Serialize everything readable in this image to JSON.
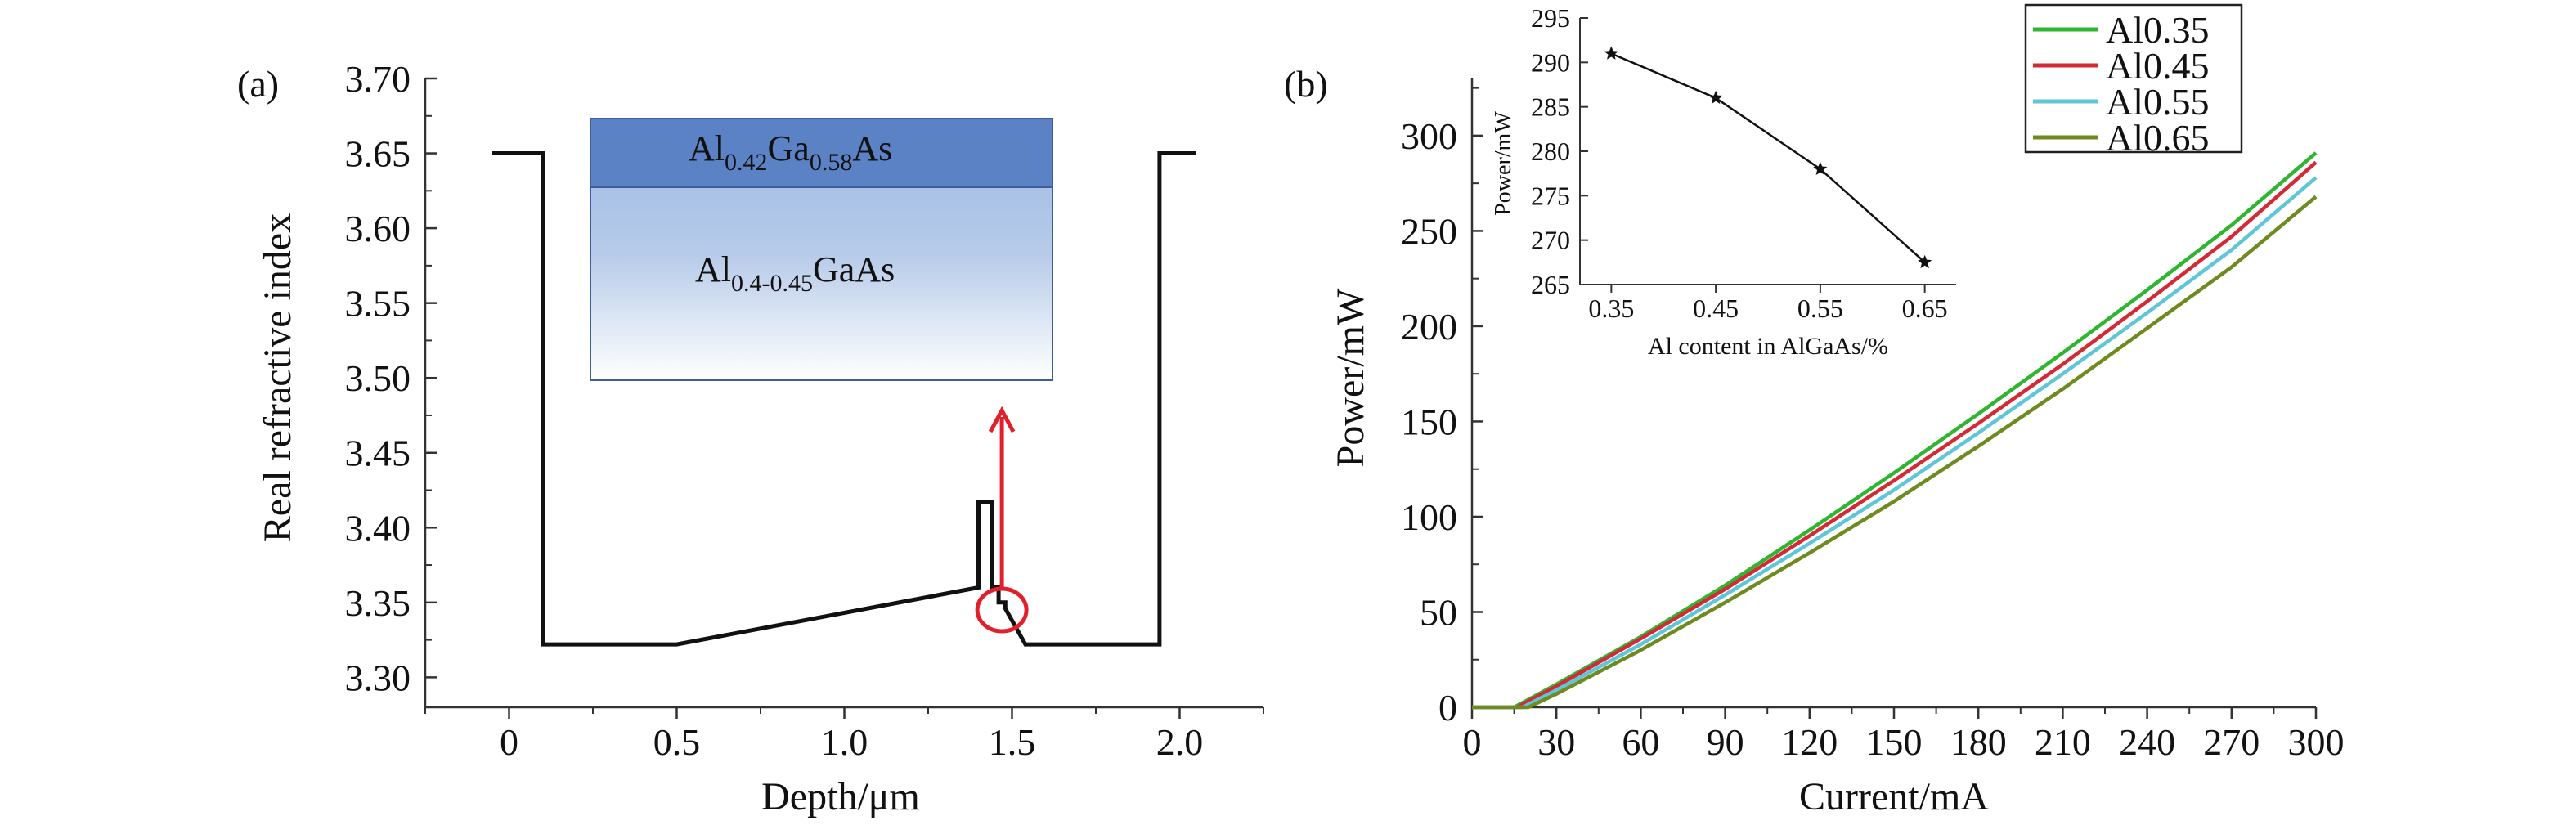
{
  "chart_data": [
    {
      "panel_label": "(a)",
      "type": "line",
      "xlabel": "Depth/μm",
      "ylabel": "Real refractive index",
      "xlim": [
        -0.25,
        2.25
      ],
      "ylim": [
        3.28,
        3.7
      ],
      "x_ticks": [
        0,
        0.5,
        1.0,
        1.5,
        2.0
      ],
      "x_tick_labels": [
        "0",
        "0.5",
        "1.0",
        "1.5",
        "2.0"
      ],
      "y_ticks": [
        3.3,
        3.35,
        3.4,
        3.45,
        3.5,
        3.55,
        3.6,
        3.65,
        3.7
      ],
      "y_tick_labels": [
        "3.30",
        "3.35",
        "3.40",
        "3.45",
        "3.50",
        "3.55",
        "3.60",
        "3.65",
        "3.70"
      ],
      "series": [
        {
          "x": [
            -0.05,
            0.1,
            0.1,
            0.5,
            1.4,
            1.4,
            1.44,
            1.44,
            1.46,
            1.46,
            1.48,
            1.48,
            1.54,
            1.94,
            1.94,
            2.05
          ],
          "y": [
            3.65,
            3.65,
            3.322,
            3.322,
            3.36,
            3.417,
            3.417,
            3.36,
            3.36,
            3.35,
            3.35,
            3.346,
            3.322,
            3.322,
            3.65,
            3.65
          ]
        }
      ],
      "annotations": {
        "layer_top_prefix": "Al",
        "layer_top_sub1": "0.42",
        "layer_top_mid": "Ga",
        "layer_top_sub2": "0.58",
        "layer_top_suffix": "As",
        "layer_bottom_prefix": "Al",
        "layer_bottom_sub": "0.4-0.45",
        "layer_bottom_suffix": "GaAs",
        "highlight_point": [
          1.46,
          3.345
        ],
        "arrow_color": "#e0202a"
      }
    },
    {
      "panel_label": "(b)",
      "type": "line",
      "xlabel": "Current/mA",
      "ylabel": "Power/mW",
      "xlim": [
        0,
        300
      ],
      "ylim": [
        0,
        330
      ],
      "x_ticks": [
        0,
        30,
        60,
        90,
        120,
        150,
        180,
        210,
        240,
        270,
        300
      ],
      "x_tick_labels": [
        "0",
        "30",
        "60",
        "90",
        "120",
        "150",
        "180",
        "210",
        "240",
        "270",
        "300"
      ],
      "y_ticks": [
        0,
        50,
        100,
        150,
        200,
        250,
        300
      ],
      "y_tick_labels": [
        "0",
        "50",
        "100",
        "150",
        "200",
        "250",
        "300"
      ],
      "legend_position": "top-right",
      "series": [
        {
          "name": "Al0.35",
          "color": "#2fb52f",
          "threshold": 15,
          "x": [
            15,
            30,
            60,
            90,
            120,
            150,
            180,
            210,
            240,
            270,
            300
          ],
          "y": [
            0,
            12,
            37,
            64,
            93,
            123,
            154,
            186,
            219,
            253,
            291
          ]
        },
        {
          "name": "Al0.45",
          "color": "#d42a35",
          "threshold": 16,
          "x": [
            16,
            30,
            60,
            90,
            120,
            150,
            180,
            210,
            240,
            270,
            300
          ],
          "y": [
            0,
            11,
            36,
            62,
            90,
            119,
            149,
            180,
            213,
            247,
            286
          ]
        },
        {
          "name": "Al0.55",
          "color": "#5ec6d8",
          "threshold": 18,
          "x": [
            18,
            30,
            60,
            90,
            120,
            150,
            180,
            210,
            240,
            270,
            300
          ],
          "y": [
            0,
            9,
            33,
            59,
            86,
            114,
            144,
            175,
            207,
            240,
            278
          ]
        },
        {
          "name": "Al0.65",
          "color": "#6f8a1e",
          "threshold": 20,
          "x": [
            20,
            30,
            60,
            90,
            120,
            150,
            180,
            210,
            240,
            270,
            300
          ],
          "y": [
            0,
            7,
            30,
            55,
            81,
            108,
            137,
            167,
            199,
            231,
            268
          ]
        }
      ],
      "inset": {
        "type": "line",
        "xlabel": "Al content in AlGaAs/%",
        "ylabel": "Power/mW",
        "xlim": [
          0.32,
          0.68
        ],
        "ylim": [
          265,
          295
        ],
        "x_ticks": [
          0.35,
          0.45,
          0.55,
          0.65
        ],
        "x_tick_labels": [
          "0.35",
          "0.45",
          "0.55",
          "0.65"
        ],
        "y_ticks": [
          265,
          270,
          275,
          280,
          285,
          290,
          295
        ],
        "y_tick_labels": [
          "265",
          "270",
          "275",
          "280",
          "285",
          "290",
          "295"
        ],
        "x": [
          0.35,
          0.45,
          0.55,
          0.65
        ],
        "y": [
          291,
          286,
          278,
          267.5
        ]
      }
    }
  ]
}
